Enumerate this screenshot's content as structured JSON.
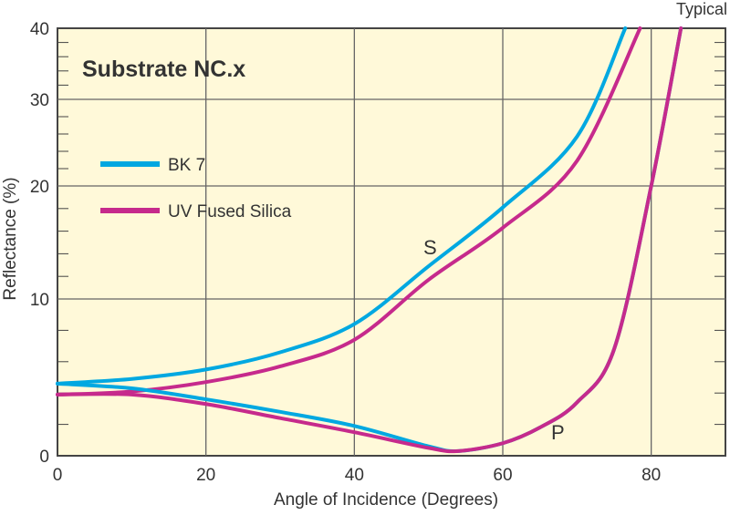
{
  "chart_data": {
    "type": "line",
    "title": "Substrate NC.x",
    "corner_label": "Typical",
    "xlabel": "Angle of Incidence (Degrees)",
    "ylabel": "Reflectance (%)",
    "xlim": [
      0,
      90
    ],
    "ylim": [
      0,
      40
    ],
    "y_scale": "nonlinear (compressed toward top)",
    "x_ticks": [
      0,
      20,
      40,
      60,
      80
    ],
    "y_ticks": [
      0,
      10,
      20,
      30,
      40
    ],
    "grid": true,
    "legend_placement": "upper-left",
    "background_color": "#fff9d9",
    "annotations": [
      {
        "text": "S",
        "x": 50.5,
        "y": 15
      },
      {
        "text": "P",
        "x": 68,
        "y": 1.5
      }
    ],
    "series": [
      {
        "name": "BK 7",
        "color": "#00a8e1",
        "polarization": "S",
        "x": [
          0,
          10,
          20,
          30,
          40,
          50,
          60,
          70,
          76.5
        ],
        "y": [
          4.6,
          4.9,
          5.5,
          6.6,
          8.4,
          12.9,
          18.1,
          25.7,
          40
        ]
      },
      {
        "name": "UV Fused Silica",
        "color": "#c62a8c",
        "polarization": "S",
        "x": [
          0,
          10,
          20,
          30,
          40,
          50,
          60,
          70,
          78.5
        ],
        "y": [
          3.9,
          4.1,
          4.7,
          5.7,
          7.4,
          11.7,
          16.3,
          22.9,
          40
        ]
      },
      {
        "name": "BK 7",
        "color": "#00a8e1",
        "polarization": "P",
        "x": [
          0,
          10,
          20,
          30,
          40,
          50,
          54,
          60,
          65,
          70,
          75,
          80,
          84
        ],
        "y": [
          4.6,
          4.3,
          3.6,
          2.8,
          1.9,
          0.6,
          0.3,
          0.8,
          1.8,
          3.4,
          6.8,
          20,
          40
        ]
      },
      {
        "name": "UV Fused Silica",
        "color": "#c62a8c",
        "polarization": "P",
        "x": [
          0,
          10,
          20,
          30,
          40,
          50,
          54,
          60,
          65,
          70,
          75,
          80,
          84
        ],
        "y": [
          3.9,
          3.9,
          3.3,
          2.4,
          1.5,
          0.5,
          0.3,
          0.8,
          1.8,
          3.4,
          6.8,
          20,
          40
        ]
      }
    ]
  }
}
